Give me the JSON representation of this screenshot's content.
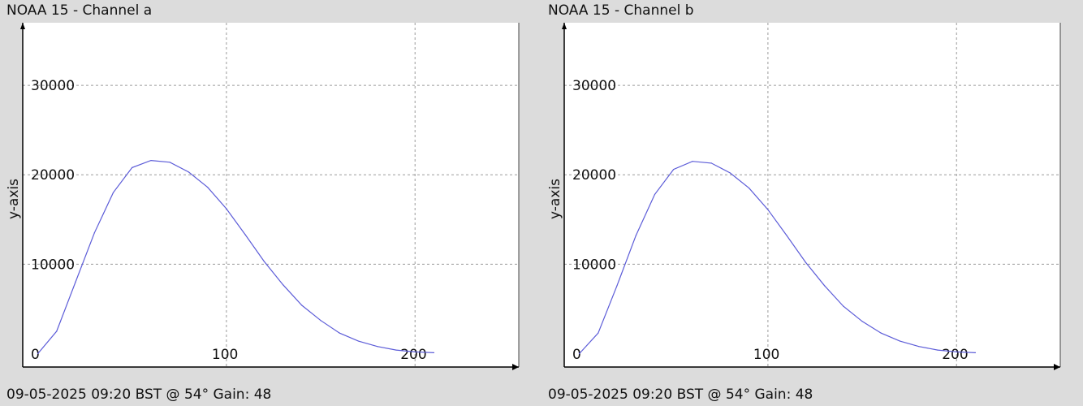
{
  "colors": {
    "background": "#dcdcdc",
    "plot_area": "#ffffff",
    "grid": "#9a9a9a",
    "axis": "#000000",
    "series": "#5c5cd8"
  },
  "panels": [
    {
      "title": "NOAA 15 - Channel a",
      "footer": "09-05-2025 09:20 BST @ 54° Gain: 48"
    },
    {
      "title": "NOAA 15 - Channel b",
      "footer": "09-05-2025 09:20 BST @ 54° Gain: 48"
    }
  ],
  "chart_data": [
    {
      "type": "line",
      "title": "NOAA 15 - Channel a",
      "xlabel": "",
      "ylabel": "y-axis",
      "xlim": [
        -8,
        255
      ],
      "ylim": [
        -1500,
        37000
      ],
      "x_ticks": [
        0,
        100,
        200
      ],
      "y_ticks": [
        10000,
        20000,
        30000
      ],
      "grid": true,
      "series": [
        {
          "x": [
            0,
            10,
            20,
            30,
            40,
            50,
            60,
            70,
            80,
            90,
            100,
            110,
            120,
            130,
            140,
            150,
            160,
            170,
            180,
            190,
            200,
            210
          ],
          "values": [
            0,
            2500,
            8000,
            13500,
            18000,
            20800,
            21600,
            21400,
            20300,
            18600,
            16200,
            13300,
            10300,
            7700,
            5400,
            3700,
            2300,
            1400,
            800,
            400,
            200,
            100
          ]
        }
      ]
    },
    {
      "type": "line",
      "title": "NOAA 15 - Channel b",
      "xlabel": "",
      "ylabel": "y-axis",
      "xlim": [
        -8,
        255
      ],
      "ylim": [
        -1500,
        37000
      ],
      "x_ticks": [
        0,
        100,
        200
      ],
      "y_ticks": [
        10000,
        20000,
        30000
      ],
      "grid": true,
      "series": [
        {
          "x": [
            0,
            10,
            20,
            30,
            40,
            50,
            60,
            70,
            80,
            90,
            100,
            110,
            120,
            130,
            140,
            150,
            160,
            170,
            180,
            190,
            200,
            210
          ],
          "values": [
            0,
            2300,
            7600,
            13200,
            17800,
            20600,
            21500,
            21300,
            20200,
            18500,
            16100,
            13200,
            10200,
            7600,
            5300,
            3600,
            2300,
            1400,
            800,
            400,
            200,
            100
          ]
        }
      ]
    }
  ]
}
